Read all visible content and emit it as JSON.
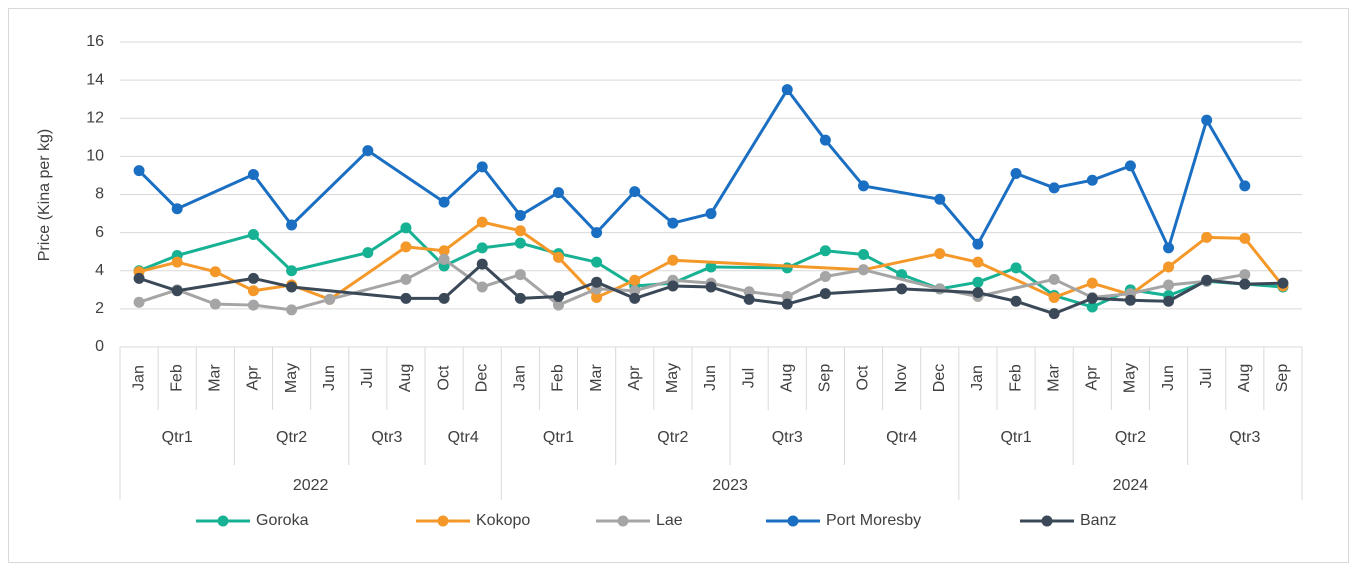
{
  "chart_data": {
    "type": "line",
    "y_axis_label": "Price (Kina per kg)",
    "categories": [
      "Jan",
      "Feb",
      "Mar",
      "Apr",
      "May",
      "Jun",
      "Jul",
      "Aug",
      "Oct",
      "Dec",
      "Jan",
      "Feb",
      "Mar",
      "Apr",
      "May",
      "Jun",
      "Jul",
      "Aug",
      "Sep",
      "Oct",
      "Nov",
      "Dec",
      "Jan",
      "Feb",
      "Mar",
      "Apr",
      "May",
      "Jun",
      "Jul",
      "Aug",
      "Sep"
    ],
    "quarters": [
      "Qtr1",
      "Qtr1",
      "Qtr1",
      "Qtr2",
      "Qtr2",
      "Qtr2",
      "Qtr3",
      "Qtr3",
      "Qtr4",
      "Qtr4",
      "Qtr1",
      "Qtr1",
      "Qtr1",
      "Qtr2",
      "Qtr2",
      "Qtr2",
      "Qtr3",
      "Qtr3",
      "Qtr3",
      "Qtr4",
      "Qtr4",
      "Qtr4",
      "Qtr1",
      "Qtr1",
      "Qtr1",
      "Qtr2",
      "Qtr2",
      "Qtr2",
      "Qtr3",
      "Qtr3",
      "Qtr3"
    ],
    "years": [
      "2022",
      "2022",
      "2022",
      "2022",
      "2022",
      "2022",
      "2022",
      "2022",
      "2022",
      "2022",
      "2023",
      "2023",
      "2023",
      "2023",
      "2023",
      "2023",
      "2023",
      "2023",
      "2023",
      "2023",
      "2023",
      "2023",
      "2024",
      "2024",
      "2024",
      "2024",
      "2024",
      "2024",
      "2024",
      "2024",
      "2024"
    ],
    "series": [
      {
        "name": "Goroka",
        "color": "#17b193",
        "values": [
          4.0,
          4.8,
          null,
          5.9,
          4.0,
          null,
          4.95,
          6.25,
          4.25,
          5.2,
          5.45,
          4.9,
          4.45,
          3.2,
          3.35,
          4.2,
          null,
          4.15,
          5.05,
          4.85,
          3.8,
          3.05,
          3.4,
          4.15,
          2.7,
          2.1,
          3.0,
          2.7,
          3.45,
          3.3,
          3.15
        ]
      },
      {
        "name": "Kokopo",
        "color": "#f5982a",
        "values": [
          3.95,
          4.45,
          3.95,
          2.95,
          3.25,
          2.5,
          null,
          5.25,
          5.05,
          6.55,
          6.1,
          4.7,
          2.6,
          3.5,
          4.55,
          null,
          null,
          null,
          null,
          4.05,
          null,
          4.9,
          4.45,
          null,
          2.6,
          3.35,
          2.75,
          4.2,
          5.75,
          5.7,
          3.2
        ]
      },
      {
        "name": "Lae",
        "color": "#a5a5a5",
        "values": [
          2.35,
          3.0,
          2.25,
          2.2,
          1.95,
          2.5,
          null,
          3.55,
          4.6,
          3.15,
          3.8,
          2.2,
          3.05,
          2.95,
          3.5,
          3.35,
          2.9,
          2.65,
          3.7,
          4.05,
          null,
          3.05,
          2.65,
          null,
          3.55,
          2.6,
          2.8,
          3.25,
          3.45,
          3.8,
          null
        ]
      },
      {
        "name": "Port Moresby",
        "color": "#1b6fc2",
        "values": [
          9.25,
          7.25,
          null,
          9.05,
          6.4,
          null,
          10.3,
          null,
          7.6,
          9.45,
          6.9,
          8.1,
          6.0,
          8.15,
          6.5,
          7.0,
          null,
          13.5,
          10.85,
          8.45,
          null,
          7.75,
          5.4,
          9.1,
          8.35,
          8.75,
          9.5,
          5.2,
          11.9,
          8.45,
          null
        ]
      },
      {
        "name": "Banz",
        "color": "#3a4858",
        "values": [
          3.6,
          2.95,
          null,
          3.6,
          3.15,
          null,
          null,
          2.55,
          2.55,
          4.35,
          2.55,
          2.65,
          3.4,
          2.55,
          3.2,
          3.15,
          2.5,
          2.25,
          2.8,
          null,
          3.05,
          null,
          2.85,
          2.4,
          1.75,
          2.55,
          2.45,
          2.4,
          3.5,
          3.3,
          3.35
        ]
      }
    ],
    "ylim": [
      0,
      16
    ],
    "yticks": [
      0,
      2,
      4,
      6,
      8,
      10,
      12,
      14,
      16
    ],
    "grid": true,
    "span_gaps": true,
    "legend": "bottom"
  }
}
